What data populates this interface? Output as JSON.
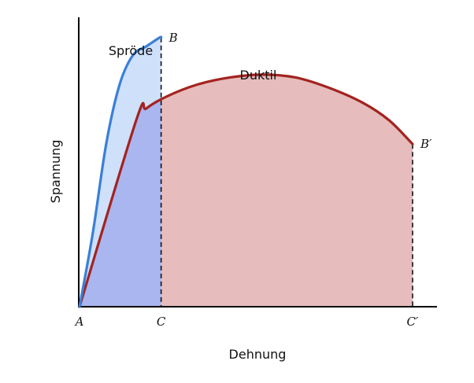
{
  "chart_data": {
    "type": "area",
    "xlabel": "Dehnung",
    "ylabel": "Spannung",
    "xlim": [
      0,
      100
    ],
    "ylim": [
      0,
      100
    ],
    "grid": false,
    "series": [
      {
        "name": "Spröde",
        "color": "#3a7fd8",
        "points": [
          [
            0,
            0
          ],
          [
            4,
            25
          ],
          [
            8,
            55
          ],
          [
            12,
            75
          ],
          [
            16,
            85
          ],
          [
            20,
            88
          ],
          [
            24,
            91
          ],
          [
            24.5,
            91
          ]
        ]
      },
      {
        "name": "Duktil",
        "color": "#a3231f",
        "points": [
          [
            0,
            0
          ],
          [
            17,
            63
          ],
          [
            20,
            67
          ],
          [
            26,
            71
          ],
          [
            35,
            75
          ],
          [
            45,
            77.5
          ],
          [
            55,
            78.5
          ],
          [
            65,
            77.5
          ],
          [
            75,
            74
          ],
          [
            85,
            69
          ],
          [
            93,
            63
          ],
          [
            100,
            55
          ]
        ]
      }
    ],
    "fills": {
      "sprode_light": "#cfe0fb",
      "overlap": "#a9b6ef",
      "duktil": "#e6bcbc"
    },
    "point_labels": [
      {
        "text": "A",
        "x": 0,
        "y": 0,
        "kind": "axis-x"
      },
      {
        "text": "C",
        "x": 24.5,
        "y": 0,
        "kind": "axis-x"
      },
      {
        "text": "C′",
        "x": 100,
        "y": 0,
        "kind": "axis-x"
      },
      {
        "text": "B",
        "x": 24.5,
        "y": 91,
        "kind": "curve-end"
      },
      {
        "text": "B′",
        "x": 100,
        "y": 55,
        "kind": "curve-end"
      }
    ]
  }
}
